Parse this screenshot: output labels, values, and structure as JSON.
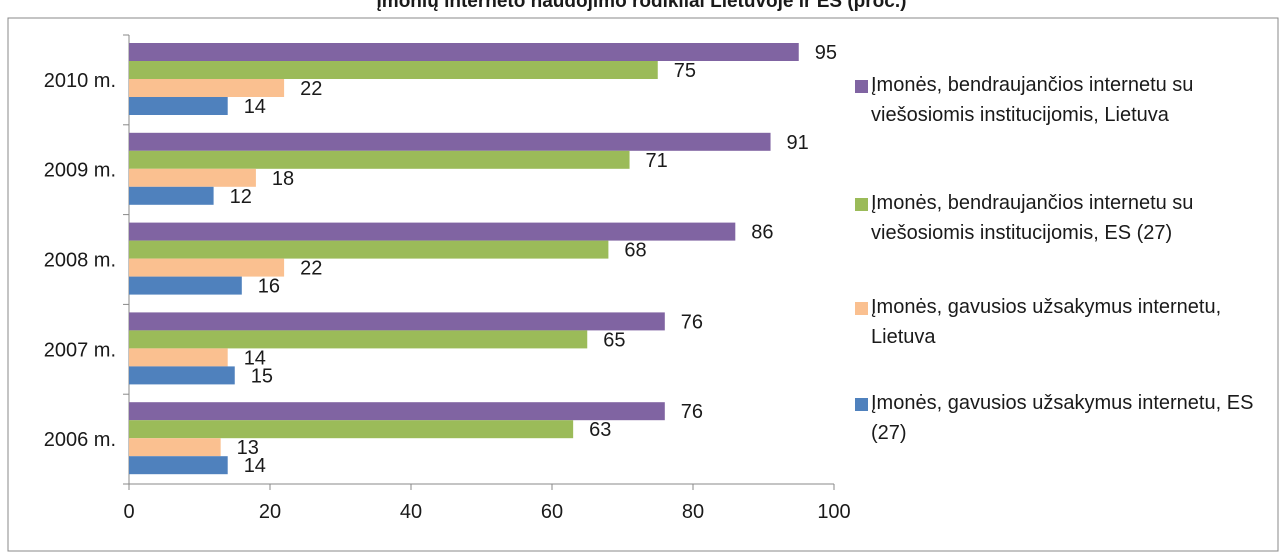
{
  "chart_data": {
    "type": "bar",
    "orientation": "horizontal",
    "title": "Įmonių  interneto naudojimo rodikliai Lietuvoje ir ES (proc.)",
    "categories": [
      "2010 m.",
      "2009 m.",
      "2008 m.",
      "2007 m.",
      "2006 m."
    ],
    "series": [
      {
        "name": "Įmonės, bendraujančios internetu su viešosiomis institucijomis, Lietuva",
        "color": "#8064a2",
        "values": [
          95,
          91,
          86,
          76,
          76
        ]
      },
      {
        "name": "Įmonės, bendraujančios internetu su viešosiomis institucijomis, ES (27)",
        "color": "#9bbb59",
        "values": [
          75,
          71,
          68,
          65,
          63
        ]
      },
      {
        "name": "Įmonės, gavusios užsakymus internetu, Lietuva",
        "color": "#fac090",
        "values": [
          22,
          18,
          22,
          14,
          13
        ]
      },
      {
        "name": "Įmonės, gavusios užsakymus internetu, ES (27)",
        "color": "#4f81bd",
        "values": [
          14,
          12,
          16,
          15,
          14
        ]
      }
    ],
    "xlim": [
      0,
      100
    ],
    "xticks": [
      "0",
      "20",
      "40",
      "60",
      "80",
      "100"
    ],
    "grid": false,
    "legend_position": "right"
  }
}
